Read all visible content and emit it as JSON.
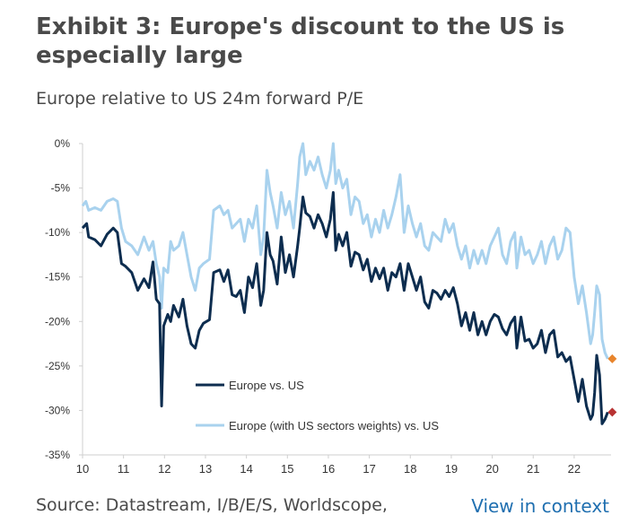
{
  "header": {
    "title": "Exhibit 3: Europe's discount to the US is especially large",
    "subtitle": "Europe relative to US 24m forward P/E"
  },
  "footer": {
    "source": "Source: Datastream, I/B/E/S, Worldscope,",
    "link": "View in context"
  },
  "colors": {
    "europe_vs_us": "#0d2d4f",
    "europe_sector_weighted": "#a9d2ee",
    "marker_light": "#e8842c",
    "marker_dark": "#b83333",
    "axis": "#cfcfcf",
    "tick_text": "#333333"
  },
  "chart_data": {
    "type": "line",
    "title": "",
    "xlabel": "",
    "ylabel": "",
    "x_ticks": [
      "10",
      "11",
      "12",
      "13",
      "14",
      "15",
      "16",
      "17",
      "18",
      "19",
      "20",
      "21",
      "22"
    ],
    "y_ticks": [
      "0%",
      "-5%",
      "-10%",
      "-15%",
      "-20%",
      "-25%",
      "-30%",
      "-35%"
    ],
    "xlim": [
      2010,
      2022.9
    ],
    "ylim": [
      -35,
      0
    ],
    "grid": false,
    "legend_position": "bottom-center",
    "series": [
      {
        "name": "Europe vs. US",
        "color_key": "europe_vs_us",
        "points": [
          [
            2010.0,
            -9.5
          ],
          [
            2010.1,
            -9.0
          ],
          [
            2010.15,
            -10.5
          ],
          [
            2010.3,
            -10.8
          ],
          [
            2010.45,
            -11.5
          ],
          [
            2010.6,
            -10.2
          ],
          [
            2010.75,
            -9.5
          ],
          [
            2010.85,
            -10.0
          ],
          [
            2010.95,
            -13.5
          ],
          [
            2011.05,
            -13.8
          ],
          [
            2011.2,
            -14.5
          ],
          [
            2011.35,
            -16.5
          ],
          [
            2011.5,
            -15.2
          ],
          [
            2011.62,
            -16.2
          ],
          [
            2011.72,
            -13.3
          ],
          [
            2011.8,
            -17.5
          ],
          [
            2011.88,
            -18.0
          ],
          [
            2011.93,
            -29.5
          ],
          [
            2011.98,
            -20.5
          ],
          [
            2012.08,
            -19.2
          ],
          [
            2012.15,
            -20.0
          ],
          [
            2012.22,
            -18.2
          ],
          [
            2012.35,
            -19.5
          ],
          [
            2012.45,
            -17.5
          ],
          [
            2012.55,
            -20.5
          ],
          [
            2012.65,
            -22.5
          ],
          [
            2012.75,
            -23.0
          ],
          [
            2012.85,
            -21.0
          ],
          [
            2012.95,
            -20.2
          ],
          [
            2013.1,
            -19.8
          ],
          [
            2013.2,
            -14.5
          ],
          [
            2013.35,
            -14.2
          ],
          [
            2013.45,
            -15.5
          ],
          [
            2013.55,
            -14.2
          ],
          [
            2013.65,
            -17.0
          ],
          [
            2013.75,
            -17.2
          ],
          [
            2013.85,
            -16.5
          ],
          [
            2013.95,
            -19.0
          ],
          [
            2014.05,
            -15.0
          ],
          [
            2014.15,
            -16.2
          ],
          [
            2014.25,
            -13.5
          ],
          [
            2014.35,
            -18.2
          ],
          [
            2014.42,
            -16.5
          ],
          [
            2014.5,
            -10.0
          ],
          [
            2014.58,
            -12.5
          ],
          [
            2014.65,
            -13.2
          ],
          [
            2014.75,
            -15.8
          ],
          [
            2014.85,
            -10.5
          ],
          [
            2014.95,
            -14.5
          ],
          [
            2015.05,
            -12.5
          ],
          [
            2015.15,
            -15.0
          ],
          [
            2015.25,
            -11.5
          ],
          [
            2015.3,
            -9.5
          ],
          [
            2015.38,
            -6.0
          ],
          [
            2015.45,
            -7.8
          ],
          [
            2015.55,
            -8.2
          ],
          [
            2015.65,
            -9.5
          ],
          [
            2015.75,
            -8.0
          ],
          [
            2015.85,
            -9.0
          ],
          [
            2015.95,
            -10.5
          ],
          [
            2016.05,
            -8.5
          ],
          [
            2016.12,
            -5.5
          ],
          [
            2016.18,
            -12.0
          ],
          [
            2016.25,
            -10.2
          ],
          [
            2016.35,
            -11.5
          ],
          [
            2016.45,
            -10.0
          ],
          [
            2016.55,
            -13.8
          ],
          [
            2016.65,
            -12.2
          ],
          [
            2016.75,
            -12.5
          ],
          [
            2016.85,
            -14.2
          ],
          [
            2016.95,
            -13.0
          ],
          [
            2017.05,
            -15.5
          ],
          [
            2017.15,
            -14.0
          ],
          [
            2017.25,
            -15.2
          ],
          [
            2017.35,
            -14.0
          ],
          [
            2017.45,
            -16.5
          ],
          [
            2017.55,
            -14.5
          ],
          [
            2017.65,
            -15.0
          ],
          [
            2017.75,
            -13.5
          ],
          [
            2017.85,
            -16.5
          ],
          [
            2017.95,
            -13.5
          ],
          [
            2018.05,
            -15.0
          ],
          [
            2018.15,
            -16.5
          ],
          [
            2018.25,
            -15.0
          ],
          [
            2018.35,
            -17.8
          ],
          [
            2018.45,
            -18.5
          ],
          [
            2018.55,
            -16.5
          ],
          [
            2018.65,
            -16.8
          ],
          [
            2018.75,
            -17.5
          ],
          [
            2018.85,
            -16.5
          ],
          [
            2018.95,
            -17.2
          ],
          [
            2019.05,
            -16.2
          ],
          [
            2019.15,
            -18.0
          ],
          [
            2019.25,
            -20.5
          ],
          [
            2019.35,
            -19.0
          ],
          [
            2019.45,
            -21.0
          ],
          [
            2019.55,
            -19.0
          ],
          [
            2019.65,
            -21.5
          ],
          [
            2019.75,
            -20.0
          ],
          [
            2019.85,
            -21.5
          ],
          [
            2019.95,
            -20.0
          ],
          [
            2020.05,
            -19.2
          ],
          [
            2020.15,
            -19.5
          ],
          [
            2020.25,
            -20.8
          ],
          [
            2020.35,
            -21.5
          ],
          [
            2020.45,
            -20.2
          ],
          [
            2020.55,
            -19.5
          ],
          [
            2020.6,
            -23.0
          ],
          [
            2020.7,
            -19.5
          ],
          [
            2020.8,
            -22.2
          ],
          [
            2020.9,
            -22.0
          ],
          [
            2021.0,
            -23.0
          ],
          [
            2021.1,
            -22.5
          ],
          [
            2021.2,
            -21.0
          ],
          [
            2021.3,
            -23.5
          ],
          [
            2021.4,
            -21.5
          ],
          [
            2021.5,
            -21.0
          ],
          [
            2021.6,
            -24.0
          ],
          [
            2021.7,
            -23.5
          ],
          [
            2021.8,
            -24.5
          ],
          [
            2021.9,
            -24.0
          ],
          [
            2022.0,
            -26.5
          ],
          [
            2022.1,
            -29.0
          ],
          [
            2022.2,
            -26.5
          ],
          [
            2022.3,
            -29.5
          ],
          [
            2022.4,
            -31.0
          ],
          [
            2022.45,
            -30.5
          ],
          [
            2022.5,
            -28.0
          ],
          [
            2022.55,
            -23.8
          ],
          [
            2022.62,
            -26.0
          ],
          [
            2022.68,
            -31.5
          ],
          [
            2022.75,
            -31.0
          ],
          [
            2022.82,
            -30.2
          ]
        ]
      },
      {
        "name": "Europe (with US sectors weights) vs. US",
        "color_key": "europe_sector_weighted",
        "points": [
          [
            2010.0,
            -7.0
          ],
          [
            2010.08,
            -6.5
          ],
          [
            2010.15,
            -7.5
          ],
          [
            2010.3,
            -7.2
          ],
          [
            2010.45,
            -7.5
          ],
          [
            2010.6,
            -6.5
          ],
          [
            2010.75,
            -6.2
          ],
          [
            2010.85,
            -6.5
          ],
          [
            2010.95,
            -9.5
          ],
          [
            2011.05,
            -11.0
          ],
          [
            2011.2,
            -11.5
          ],
          [
            2011.35,
            -12.5
          ],
          [
            2011.5,
            -10.5
          ],
          [
            2011.62,
            -12.0
          ],
          [
            2011.72,
            -11.0
          ],
          [
            2011.8,
            -13.5
          ],
          [
            2011.88,
            -15.0
          ],
          [
            2011.93,
            -18.5
          ],
          [
            2011.98,
            -14.0
          ],
          [
            2012.08,
            -14.5
          ],
          [
            2012.15,
            -11.0
          ],
          [
            2012.22,
            -12.0
          ],
          [
            2012.35,
            -11.5
          ],
          [
            2012.45,
            -10.0
          ],
          [
            2012.55,
            -12.5
          ],
          [
            2012.65,
            -15.0
          ],
          [
            2012.75,
            -16.5
          ],
          [
            2012.85,
            -14.0
          ],
          [
            2012.95,
            -13.5
          ],
          [
            2013.1,
            -13.0
          ],
          [
            2013.2,
            -7.5
          ],
          [
            2013.35,
            -7.0
          ],
          [
            2013.45,
            -8.0
          ],
          [
            2013.55,
            -7.5
          ],
          [
            2013.65,
            -9.5
          ],
          [
            2013.75,
            -9.0
          ],
          [
            2013.85,
            -8.5
          ],
          [
            2013.95,
            -11.0
          ],
          [
            2014.05,
            -8.5
          ],
          [
            2014.15,
            -9.5
          ],
          [
            2014.25,
            -7.0
          ],
          [
            2014.35,
            -12.5
          ],
          [
            2014.42,
            -10.5
          ],
          [
            2014.5,
            -3.0
          ],
          [
            2014.58,
            -5.5
          ],
          [
            2014.65,
            -7.0
          ],
          [
            2014.75,
            -9.5
          ],
          [
            2014.85,
            -5.5
          ],
          [
            2014.95,
            -8.0
          ],
          [
            2015.05,
            -6.5
          ],
          [
            2015.15,
            -9.5
          ],
          [
            2015.25,
            -4.5
          ],
          [
            2015.3,
            -1.5
          ],
          [
            2015.38,
            0.0
          ],
          [
            2015.45,
            -3.5
          ],
          [
            2015.55,
            -2.0
          ],
          [
            2015.65,
            -3.0
          ],
          [
            2015.75,
            -1.5
          ],
          [
            2015.85,
            -3.5
          ],
          [
            2015.95,
            -5.0
          ],
          [
            2016.05,
            -3.0
          ],
          [
            2016.12,
            0.0
          ],
          [
            2016.18,
            -4.5
          ],
          [
            2016.25,
            -3.0
          ],
          [
            2016.35,
            -5.0
          ],
          [
            2016.45,
            -4.0
          ],
          [
            2016.55,
            -8.0
          ],
          [
            2016.65,
            -6.0
          ],
          [
            2016.75,
            -6.5
          ],
          [
            2016.85,
            -9.0
          ],
          [
            2016.95,
            -8.0
          ],
          [
            2017.05,
            -10.5
          ],
          [
            2017.15,
            -8.5
          ],
          [
            2017.25,
            -10.0
          ],
          [
            2017.35,
            -7.5
          ],
          [
            2017.45,
            -9.5
          ],
          [
            2017.55,
            -8.0
          ],
          [
            2017.65,
            -6.0
          ],
          [
            2017.75,
            -3.5
          ],
          [
            2017.85,
            -10.0
          ],
          [
            2017.95,
            -7.0
          ],
          [
            2018.05,
            -9.0
          ],
          [
            2018.15,
            -10.5
          ],
          [
            2018.25,
            -9.0
          ],
          [
            2018.35,
            -11.5
          ],
          [
            2018.45,
            -12.0
          ],
          [
            2018.55,
            -10.0
          ],
          [
            2018.65,
            -10.5
          ],
          [
            2018.75,
            -11.0
          ],
          [
            2018.85,
            -8.5
          ],
          [
            2018.95,
            -10.0
          ],
          [
            2019.05,
            -9.0
          ],
          [
            2019.15,
            -11.5
          ],
          [
            2019.25,
            -13.0
          ],
          [
            2019.35,
            -11.5
          ],
          [
            2019.45,
            -14.0
          ],
          [
            2019.55,
            -12.0
          ],
          [
            2019.65,
            -13.5
          ],
          [
            2019.75,
            -12.0
          ],
          [
            2019.85,
            -13.5
          ],
          [
            2019.95,
            -11.5
          ],
          [
            2020.05,
            -10.5
          ],
          [
            2020.15,
            -9.5
          ],
          [
            2020.25,
            -12.5
          ],
          [
            2020.35,
            -13.5
          ],
          [
            2020.45,
            -11.0
          ],
          [
            2020.55,
            -10.0
          ],
          [
            2020.6,
            -14.0
          ],
          [
            2020.7,
            -10.5
          ],
          [
            2020.8,
            -12.5
          ],
          [
            2020.9,
            -12.0
          ],
          [
            2021.0,
            -13.5
          ],
          [
            2021.1,
            -12.5
          ],
          [
            2021.2,
            -11.0
          ],
          [
            2021.3,
            -13.5
          ],
          [
            2021.4,
            -11.5
          ],
          [
            2021.5,
            -10.5
          ],
          [
            2021.6,
            -13.0
          ],
          [
            2021.7,
            -12.0
          ],
          [
            2021.8,
            -9.5
          ],
          [
            2021.9,
            -10.0
          ],
          [
            2022.0,
            -15.0
          ],
          [
            2022.1,
            -18.0
          ],
          [
            2022.2,
            -16.0
          ],
          [
            2022.3,
            -19.0
          ],
          [
            2022.4,
            -22.5
          ],
          [
            2022.45,
            -21.5
          ],
          [
            2022.5,
            -19.0
          ],
          [
            2022.55,
            -16.0
          ],
          [
            2022.62,
            -17.0
          ],
          [
            2022.68,
            -22.0
          ],
          [
            2022.75,
            -23.5
          ],
          [
            2022.82,
            -24.2
          ]
        ]
      }
    ],
    "end_markers": [
      {
        "series_index": 1,
        "x": 2022.82,
        "y": -24.2,
        "color_key": "marker_light"
      },
      {
        "series_index": 0,
        "x": 2022.82,
        "y": -30.2,
        "color_key": "marker_dark"
      }
    ]
  }
}
